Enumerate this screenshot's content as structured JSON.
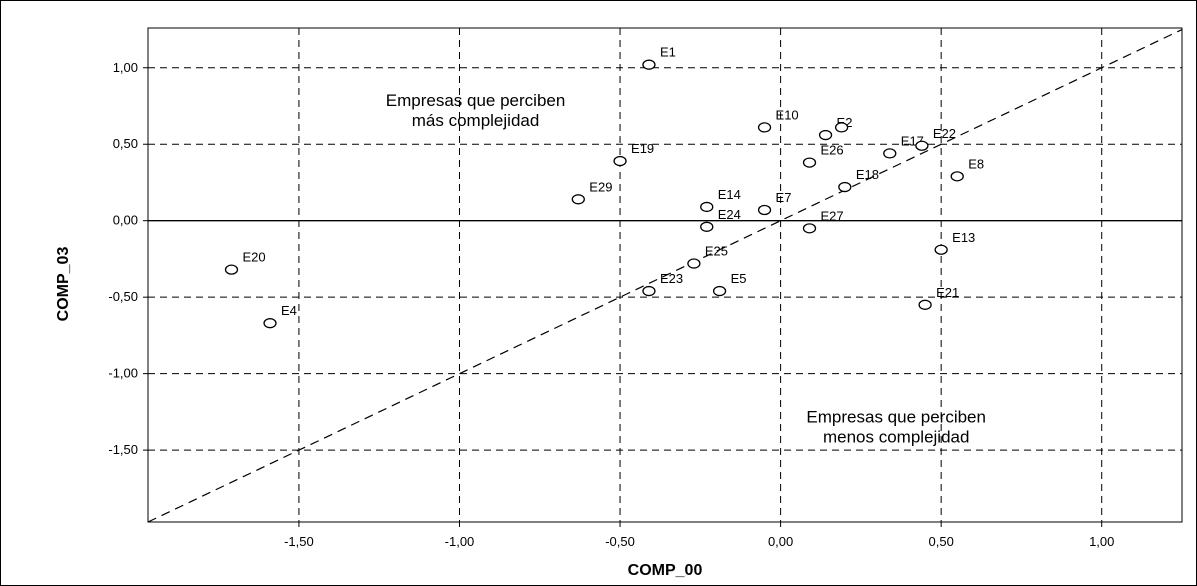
{
  "chart_data": {
    "type": "scatter",
    "xlabel": "COMP_00",
    "ylabel": "COMP_03",
    "xlim": [
      -1.97,
      1.25
    ],
    "ylim": [
      -1.97,
      1.26
    ],
    "x_ticks": [
      -1.5,
      -1.0,
      -0.5,
      0.0,
      0.5,
      1.0
    ],
    "y_ticks": [
      1.0,
      0.5,
      0.0,
      -0.5,
      -1.0,
      -1.5
    ],
    "x_tick_labels": [
      "-1,50",
      "-1,00",
      "-0,50",
      "0,00",
      "0,50",
      "1,00"
    ],
    "y_tick_labels": [
      "1,00",
      "0,50",
      "0,00",
      "-0,50",
      "-1,00",
      "-1,50"
    ],
    "grid": true,
    "grid_style": "dashed",
    "reference_line": "y = x (dashed)",
    "zero_line": "y = 0 (solid)",
    "annotations": [
      {
        "text_lines": [
          "Empresas que perciben",
          "más complejidad"
        ],
        "x": -0.95,
        "y": 0.75
      },
      {
        "text_lines": [
          "Empresas que perciben",
          "menos complejidad"
        ],
        "x": 0.36,
        "y": -1.32
      }
    ],
    "points": [
      {
        "label": "E1",
        "x": -0.41,
        "y": 1.02
      },
      {
        "label": "E10",
        "x": -0.05,
        "y": 0.61
      },
      {
        "label": "E2",
        "x": 0.14,
        "y": 0.56
      },
      {
        "label": "",
        "x": 0.19,
        "y": 0.61
      },
      {
        "label": "E17",
        "x": 0.34,
        "y": 0.44
      },
      {
        "label": "E22",
        "x": 0.44,
        "y": 0.49
      },
      {
        "label": "E26",
        "x": 0.09,
        "y": 0.38
      },
      {
        "label": "E8",
        "x": 0.55,
        "y": 0.29
      },
      {
        "label": "E19",
        "x": -0.5,
        "y": 0.39
      },
      {
        "label": "E29",
        "x": -0.63,
        "y": 0.14
      },
      {
        "label": "E14",
        "x": -0.23,
        "y": 0.09
      },
      {
        "label": "E7",
        "x": -0.05,
        "y": 0.07
      },
      {
        "label": "E18",
        "x": 0.2,
        "y": 0.22
      },
      {
        "label": "E24",
        "x": -0.23,
        "y": -0.04
      },
      {
        "label": "E27",
        "x": 0.09,
        "y": -0.05
      },
      {
        "label": "E13",
        "x": 0.5,
        "y": -0.19
      },
      {
        "label": "E25",
        "x": -0.27,
        "y": -0.28
      },
      {
        "label": "E23",
        "x": -0.41,
        "y": -0.46
      },
      {
        "label": "E5",
        "x": -0.19,
        "y": -0.46
      },
      {
        "label": "E21",
        "x": 0.45,
        "y": -0.55
      },
      {
        "label": "E20",
        "x": -1.71,
        "y": -0.32
      },
      {
        "label": "E4",
        "x": -1.59,
        "y": -0.67
      }
    ]
  }
}
